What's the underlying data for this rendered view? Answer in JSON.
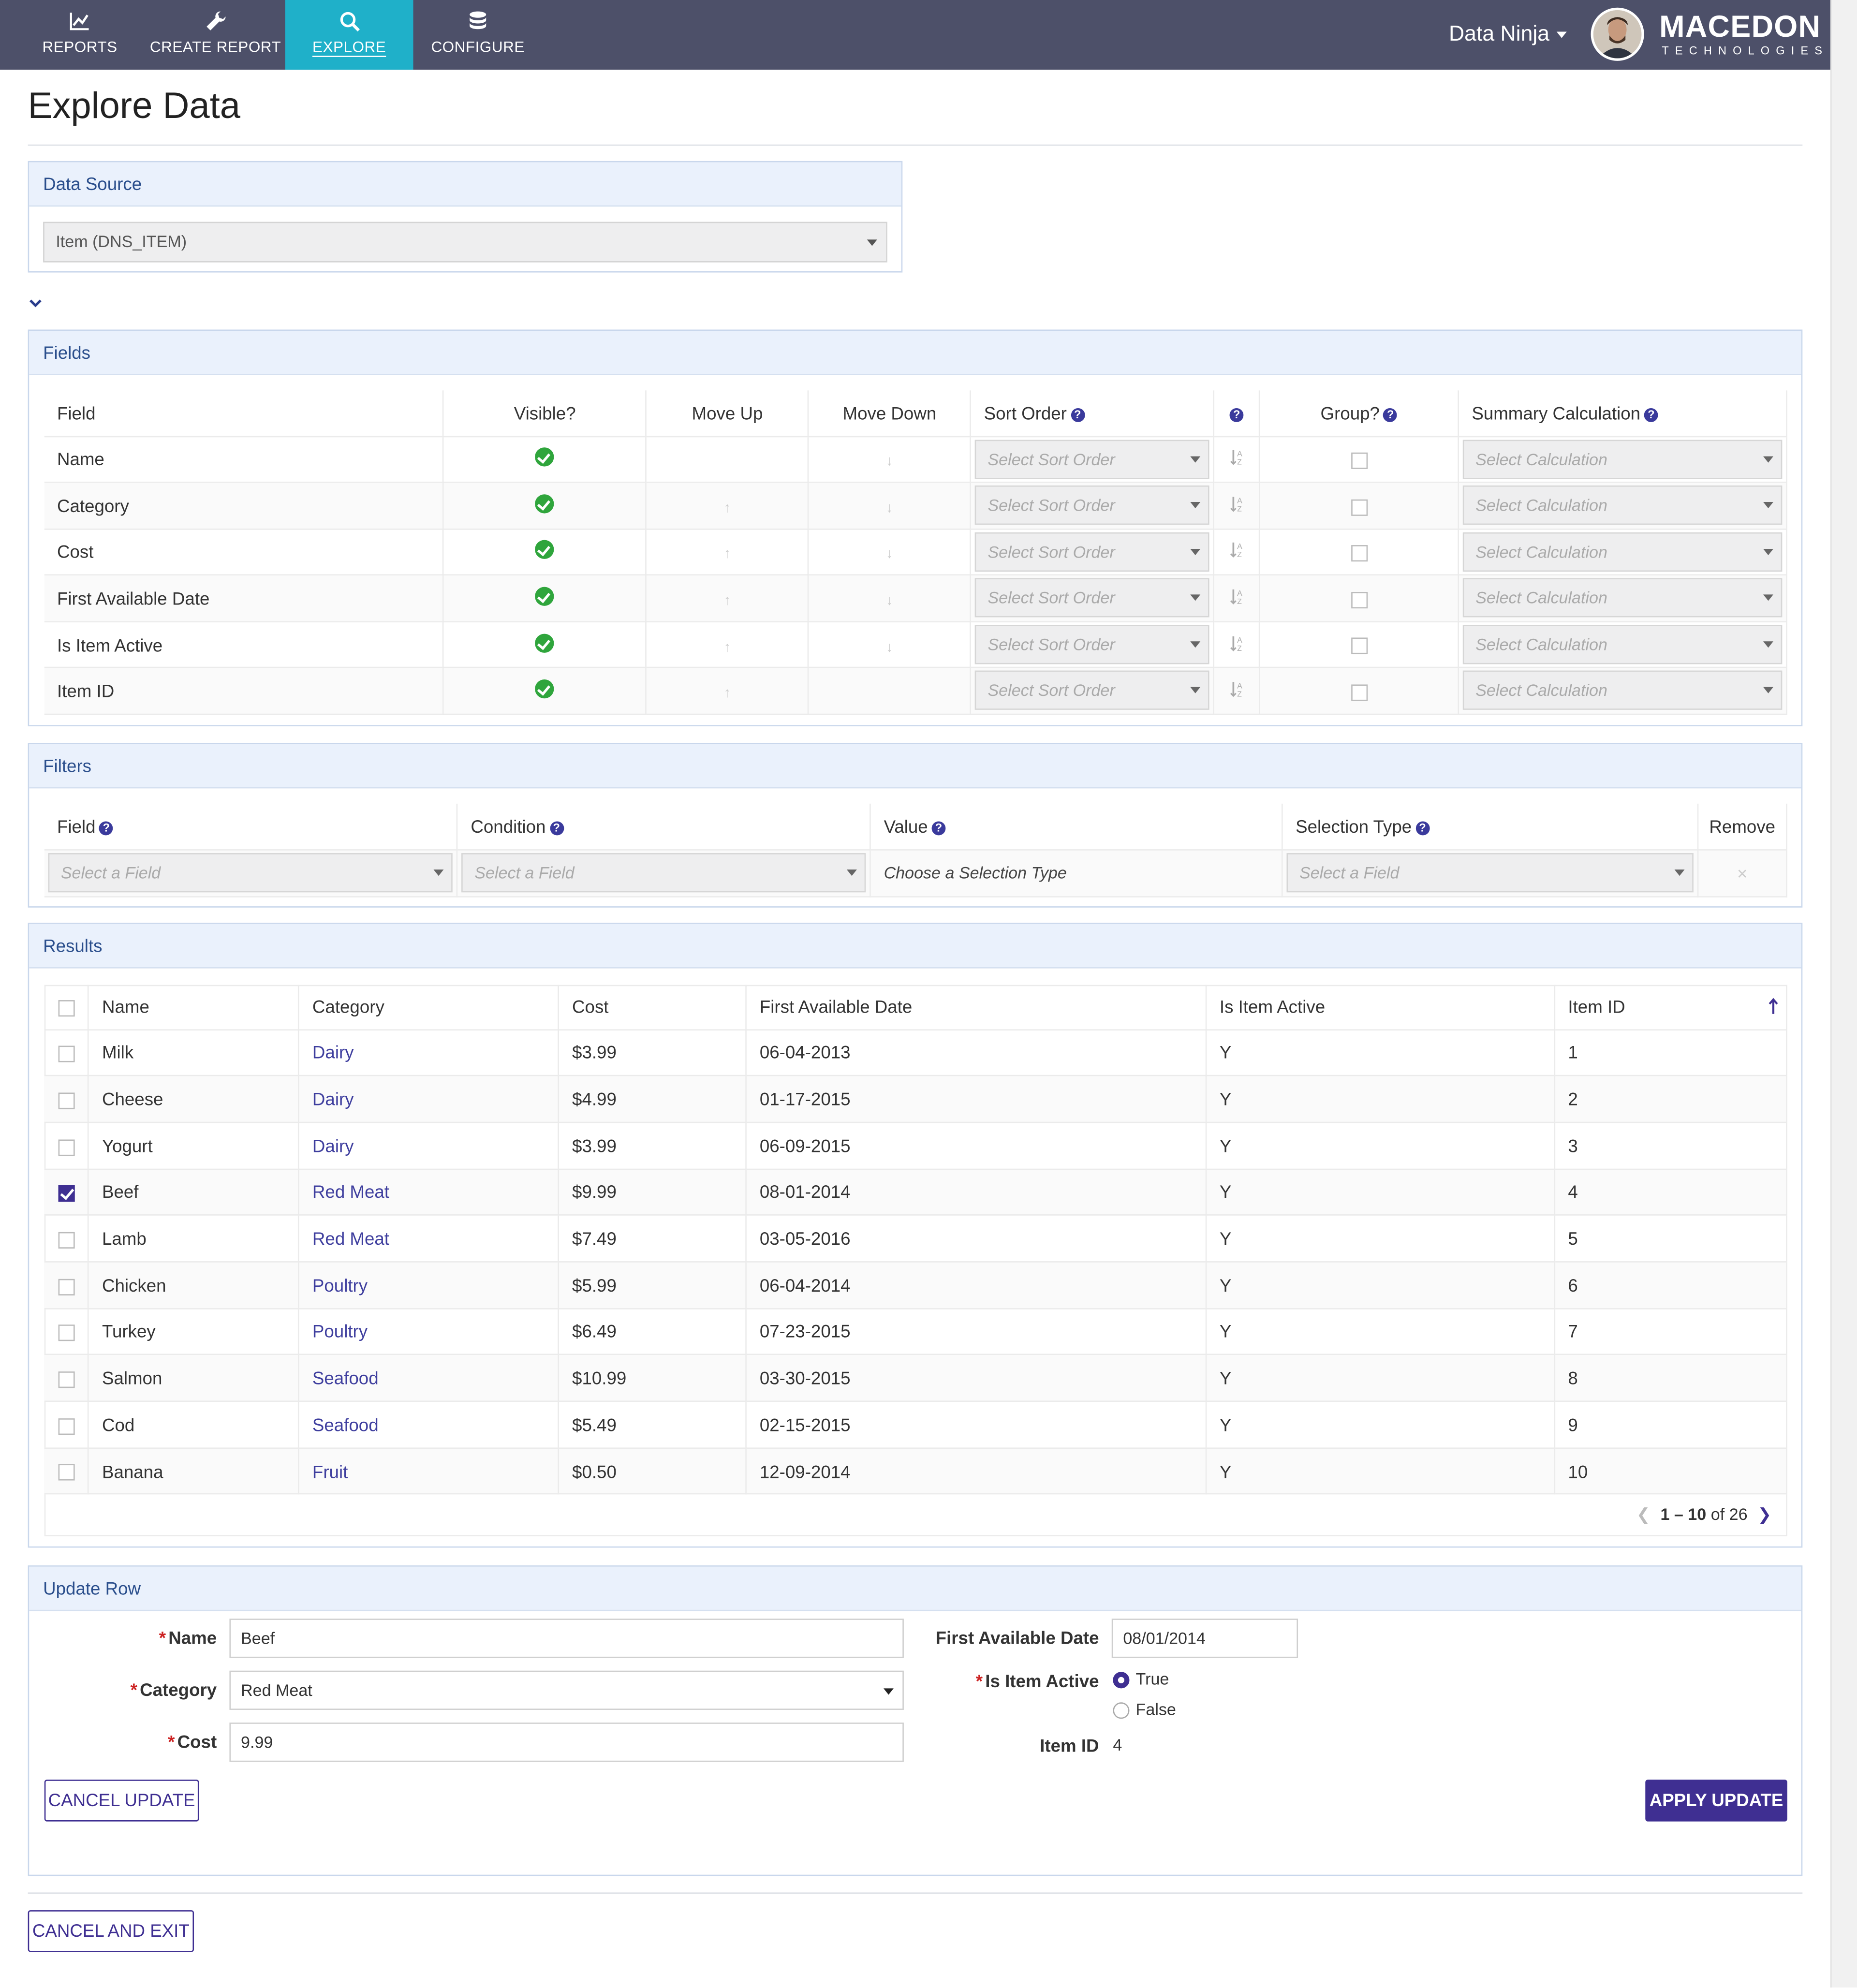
{
  "nav": {
    "items": [
      {
        "label": "REPORTS",
        "icon": "line-chart-icon"
      },
      {
        "label": "CREATE REPORT",
        "icon": "wrench-icon"
      },
      {
        "label": "EXPLORE",
        "icon": "search-icon",
        "active": true
      },
      {
        "label": "CONFIGURE",
        "icon": "database-icon"
      }
    ],
    "user_name": "Data Ninja",
    "brand_name": "MACEDON",
    "brand_sub": "TECHNOLOGIES",
    "bg_color": "#4d5069",
    "active_color": "#1fb0c9"
  },
  "page": {
    "title": "Explore Data"
  },
  "data_source": {
    "heading": "Data Source",
    "selected": "Item (DNS_ITEM)"
  },
  "fields": {
    "heading": "Fields",
    "columns": [
      "Field",
      "Visible?",
      "Move Up",
      "Move Down",
      "Sort Order",
      "",
      "Group?",
      "Summary Calculation"
    ],
    "sort_placeholder": "Select Sort Order",
    "calc_placeholder": "Select Calculation",
    "rows": [
      {
        "name": "Name",
        "visible": true,
        "up": false,
        "down": true
      },
      {
        "name": "Category",
        "visible": true,
        "up": true,
        "down": true
      },
      {
        "name": "Cost",
        "visible": true,
        "up": true,
        "down": true
      },
      {
        "name": "First Available Date",
        "visible": true,
        "up": true,
        "down": true
      },
      {
        "name": "Is Item Active",
        "visible": true,
        "up": true,
        "down": true
      },
      {
        "name": "Item ID",
        "visible": true,
        "up": true,
        "down": false
      }
    ]
  },
  "filters": {
    "heading": "Filters",
    "columns": [
      "Field",
      "Condition",
      "Value",
      "Selection Type",
      "Remove"
    ],
    "field_placeholder": "Select a Field",
    "condition_placeholder": "Select a Field",
    "value_placeholder": "Choose a Selection Type",
    "selection_placeholder": "Select a Field",
    "remove_glyph": "×"
  },
  "results": {
    "heading": "Results",
    "columns": [
      "Name",
      "Category",
      "Cost",
      "First Available Date",
      "Is Item Active",
      "Item ID"
    ],
    "rows": [
      {
        "checked": false,
        "name": "Milk",
        "category": "Dairy",
        "cost": "$3.99",
        "date": "06-04-2013",
        "active": "Y",
        "id": "1"
      },
      {
        "checked": false,
        "name": "Cheese",
        "category": "Dairy",
        "cost": "$4.99",
        "date": "01-17-2015",
        "active": "Y",
        "id": "2"
      },
      {
        "checked": false,
        "name": "Yogurt",
        "category": "Dairy",
        "cost": "$3.99",
        "date": "06-09-2015",
        "active": "Y",
        "id": "3"
      },
      {
        "checked": true,
        "name": "Beef",
        "category": "Red Meat",
        "cost": "$9.99",
        "date": "08-01-2014",
        "active": "Y",
        "id": "4"
      },
      {
        "checked": false,
        "name": "Lamb",
        "category": "Red Meat",
        "cost": "$7.49",
        "date": "03-05-2016",
        "active": "Y",
        "id": "5"
      },
      {
        "checked": false,
        "name": "Chicken",
        "category": "Poultry",
        "cost": "$5.99",
        "date": "06-04-2014",
        "active": "Y",
        "id": "6"
      },
      {
        "checked": false,
        "name": "Turkey",
        "category": "Poultry",
        "cost": "$6.49",
        "date": "07-23-2015",
        "active": "Y",
        "id": "7"
      },
      {
        "checked": false,
        "name": "Salmon",
        "category": "Seafood",
        "cost": "$10.99",
        "date": "03-30-2015",
        "active": "Y",
        "id": "8"
      },
      {
        "checked": false,
        "name": "Cod",
        "category": "Seafood",
        "cost": "$5.49",
        "date": "02-15-2015",
        "active": "Y",
        "id": "9"
      },
      {
        "checked": false,
        "name": "Banana",
        "category": "Fruit",
        "cost": "$0.50",
        "date": "12-09-2014",
        "active": "Y",
        "id": "10"
      }
    ],
    "pagination": {
      "range": "1 – 10",
      "of_label": "of",
      "total": "26"
    }
  },
  "update_row": {
    "heading": "Update Row",
    "name_label": "Name",
    "name_value": "Beef",
    "category_label": "Category",
    "category_value": "Red Meat",
    "cost_label": "Cost",
    "cost_value": "9.99",
    "date_label": "First Available Date",
    "date_value": "08/01/2014",
    "active_label": "Is Item Active",
    "true_label": "True",
    "false_label": "False",
    "active_value": "True",
    "id_label": "Item ID",
    "id_value": "4",
    "cancel_label": "CANCEL UPDATE",
    "apply_label": "APPLY UPDATE",
    "required_mark": "*"
  },
  "footer": {
    "cancel_exit_label": "CANCEL AND EXIT"
  },
  "accent_color": "#3f2f92"
}
